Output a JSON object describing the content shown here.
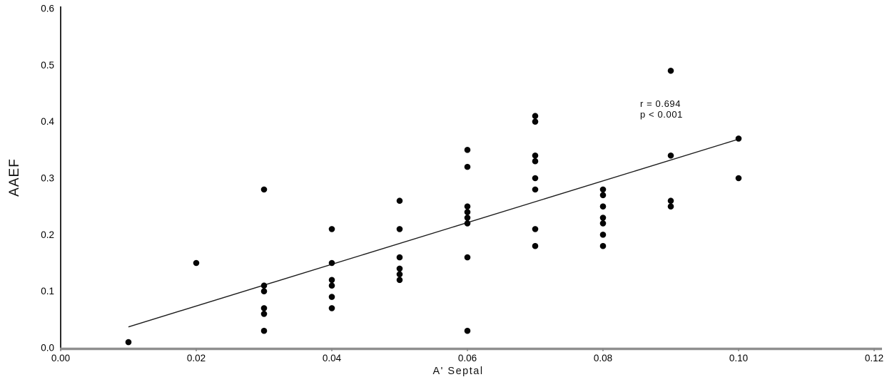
{
  "chart_data": {
    "type": "scatter",
    "title": "",
    "xlabel": "A' Septal",
    "ylabel": "AAEF",
    "xlim": [
      0.0,
      0.12
    ],
    "ylim": [
      0.0,
      0.6
    ],
    "grid": false,
    "legend_position": "none",
    "x_ticks": [
      0.0,
      0.02,
      0.04,
      0.06,
      0.08,
      0.1,
      0.12
    ],
    "x_tick_labels": [
      "0.00",
      "0.02",
      "0.04",
      "0.06",
      "0.08",
      "0.10",
      "0.12"
    ],
    "y_ticks": [
      0.0,
      0.1,
      0.2,
      0.3,
      0.4,
      0.5,
      0.6
    ],
    "y_tick_labels": [
      "0.0",
      "0.1",
      "0.2",
      "0.3",
      "0.4",
      "0.5",
      "0.6"
    ],
    "points": [
      [
        0.01,
        0.01
      ],
      [
        0.02,
        0.15
      ],
      [
        0.03,
        0.28
      ],
      [
        0.03,
        0.11
      ],
      [
        0.03,
        0.1
      ],
      [
        0.03,
        0.07
      ],
      [
        0.03,
        0.06
      ],
      [
        0.03,
        0.03
      ],
      [
        0.04,
        0.21
      ],
      [
        0.04,
        0.15
      ],
      [
        0.04,
        0.12
      ],
      [
        0.04,
        0.11
      ],
      [
        0.04,
        0.09
      ],
      [
        0.04,
        0.07
      ],
      [
        0.05,
        0.26
      ],
      [
        0.05,
        0.21
      ],
      [
        0.05,
        0.16
      ],
      [
        0.05,
        0.14
      ],
      [
        0.05,
        0.13
      ],
      [
        0.05,
        0.12
      ],
      [
        0.06,
        0.35
      ],
      [
        0.06,
        0.32
      ],
      [
        0.06,
        0.25
      ],
      [
        0.06,
        0.24
      ],
      [
        0.06,
        0.23
      ],
      [
        0.06,
        0.22
      ],
      [
        0.06,
        0.16
      ],
      [
        0.06,
        0.03
      ],
      [
        0.07,
        0.41
      ],
      [
        0.07,
        0.4
      ],
      [
        0.07,
        0.34
      ],
      [
        0.07,
        0.33
      ],
      [
        0.07,
        0.3
      ],
      [
        0.07,
        0.28
      ],
      [
        0.07,
        0.21
      ],
      [
        0.07,
        0.18
      ],
      [
        0.08,
        0.28
      ],
      [
        0.08,
        0.27
      ],
      [
        0.08,
        0.25
      ],
      [
        0.08,
        0.23
      ],
      [
        0.08,
        0.22
      ],
      [
        0.08,
        0.2
      ],
      [
        0.08,
        0.18
      ],
      [
        0.09,
        0.49
      ],
      [
        0.09,
        0.34
      ],
      [
        0.09,
        0.26
      ],
      [
        0.09,
        0.25
      ],
      [
        0.1,
        0.37
      ],
      [
        0.1,
        0.3
      ]
    ],
    "fit_line": {
      "x1": 0.01,
      "y1": 0.037,
      "x2": 0.1,
      "y2": 0.369
    },
    "annotation": {
      "lines": [
        "r = 0.694",
        "p < 0.001"
      ]
    },
    "colors": {
      "point": "#050505",
      "fit_line": "#1c1c1c",
      "y_axis": "#2b2b2b",
      "x_axis": "#8f8f8f",
      "tick_text": "#000000"
    }
  }
}
